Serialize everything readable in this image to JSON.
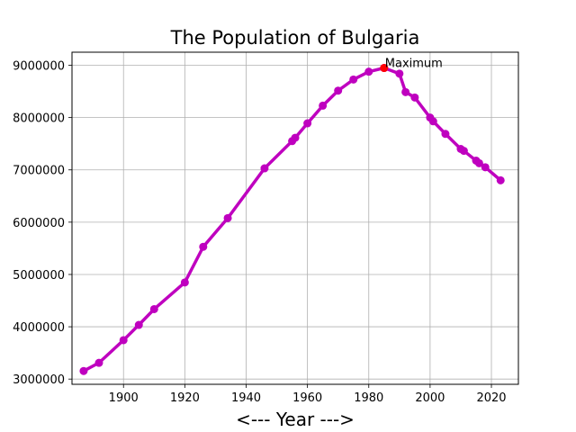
{
  "chart_data": {
    "type": "line",
    "title": "The Population of Bulgaria",
    "xlabel": "<--- Year --->",
    "ylabel": "",
    "xlim": [
      1883.2,
      2028.8
    ],
    "ylim": [
      2900000,
      9250000
    ],
    "xticks": [
      1900,
      1920,
      1940,
      1960,
      1980,
      2000,
      2020
    ],
    "yticks": [
      3000000,
      4000000,
      5000000,
      6000000,
      7000000,
      8000000,
      9000000
    ],
    "grid": true,
    "series": [
      {
        "color": "#bf00bf",
        "points": [
          {
            "x": 1887,
            "y": 3154375
          },
          {
            "x": 1892,
            "y": 3310713
          },
          {
            "x": 1900,
            "y": 3744283
          },
          {
            "x": 1905,
            "y": 4035575
          },
          {
            "x": 1910,
            "y": 4337513
          },
          {
            "x": 1920,
            "y": 4846971
          },
          {
            "x": 1926,
            "y": 5528741
          },
          {
            "x": 1934,
            "y": 6077939
          },
          {
            "x": 1946,
            "y": 7029349
          },
          {
            "x": 1955,
            "y": 7550000
          },
          {
            "x": 1956,
            "y": 7613709
          },
          {
            "x": 1960,
            "y": 7890000
          },
          {
            "x": 1965,
            "y": 8227866
          },
          {
            "x": 1970,
            "y": 8515000
          },
          {
            "x": 1975,
            "y": 8727771
          },
          {
            "x": 1980,
            "y": 8877000
          },
          {
            "x": 1985,
            "y": 8948649
          },
          {
            "x": 1990,
            "y": 8840000
          },
          {
            "x": 1992,
            "y": 8487317
          },
          {
            "x": 1995,
            "y": 8384000
          },
          {
            "x": 2000,
            "y": 8000000
          },
          {
            "x": 2001,
            "y": 7928901
          },
          {
            "x": 2005,
            "y": 7688000
          },
          {
            "x": 2010,
            "y": 7400000
          },
          {
            "x": 2011,
            "y": 7364570
          },
          {
            "x": 2015,
            "y": 7177000
          },
          {
            "x": 2016,
            "y": 7127000
          },
          {
            "x": 2018,
            "y": 7050034
          },
          {
            "x": 2023,
            "y": 6800000
          }
        ]
      }
    ],
    "annotations": [
      {
        "text": "Maximum",
        "x": 1985,
        "y": 8948649,
        "marker_color": "#ff0000"
      }
    ]
  }
}
